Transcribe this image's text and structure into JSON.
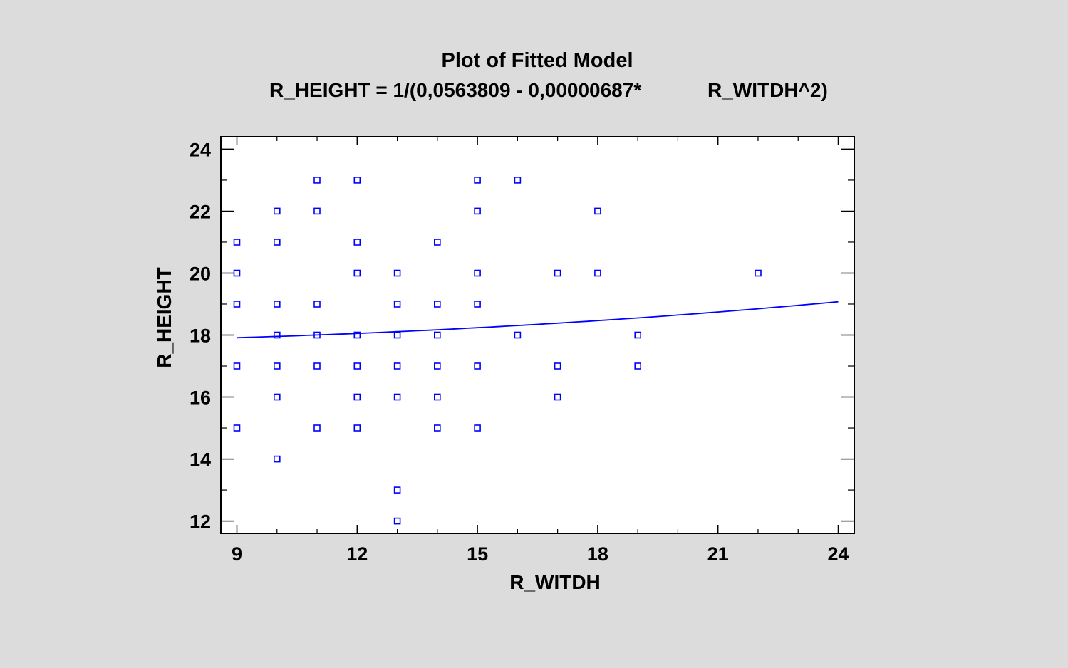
{
  "chart_data": {
    "type": "scatter",
    "title": "Plot of Fitted Model",
    "subtitle_left": "R_HEIGHT = 1/(0,0563809 - 0,00000687*",
    "subtitle_right": "R_WITDH^2)",
    "xlabel": "R_WITDH",
    "ylabel": "R_HEIGHT",
    "xlim": [
      8.6,
      24.4
    ],
    "ylim": [
      11.6,
      24.4
    ],
    "xticks": [
      9,
      12,
      15,
      18,
      21,
      24
    ],
    "yticks": [
      12,
      14,
      16,
      18,
      20,
      22,
      24
    ],
    "grid": false,
    "colors": {
      "points": "#0000ff",
      "fit_line": "#0000ff",
      "plot_background": "#ffffff",
      "page_background": "#dcdcdc"
    },
    "series": [
      {
        "type": "scatter",
        "marker": "square",
        "points": [
          [
            9,
            21
          ],
          [
            9,
            20
          ],
          [
            9,
            19
          ],
          [
            9,
            17
          ],
          [
            9,
            15
          ],
          [
            10,
            22
          ],
          [
            10,
            21
          ],
          [
            10,
            19
          ],
          [
            10,
            18
          ],
          [
            10,
            17
          ],
          [
            10,
            16
          ],
          [
            10,
            14
          ],
          [
            11,
            23
          ],
          [
            11,
            22
          ],
          [
            11,
            19
          ],
          [
            11,
            18
          ],
          [
            11,
            17
          ],
          [
            11,
            15
          ],
          [
            12,
            23
          ],
          [
            12,
            21
          ],
          [
            12,
            20
          ],
          [
            12,
            18
          ],
          [
            12,
            17
          ],
          [
            12,
            16
          ],
          [
            12,
            15
          ],
          [
            13,
            20
          ],
          [
            13,
            19
          ],
          [
            13,
            18
          ],
          [
            13,
            17
          ],
          [
            13,
            16
          ],
          [
            13,
            13
          ],
          [
            13,
            12
          ],
          [
            14,
            21
          ],
          [
            14,
            19
          ],
          [
            14,
            18
          ],
          [
            14,
            17
          ],
          [
            14,
            16
          ],
          [
            14,
            15
          ],
          [
            15,
            23
          ],
          [
            15,
            22
          ],
          [
            15,
            20
          ],
          [
            15,
            19
          ],
          [
            15,
            17
          ],
          [
            15,
            15
          ],
          [
            16,
            23
          ],
          [
            16,
            18
          ],
          [
            17,
            20
          ],
          [
            17,
            17
          ],
          [
            17,
            16
          ],
          [
            18,
            22
          ],
          [
            18,
            20
          ],
          [
            19,
            18
          ],
          [
            19,
            17
          ],
          [
            22,
            20
          ]
        ]
      },
      {
        "type": "line",
        "model": "reciprocal-y squared-x",
        "a": 0.0563809,
        "b": -6.87e-06,
        "x_range": [
          9,
          24
        ]
      }
    ]
  }
}
